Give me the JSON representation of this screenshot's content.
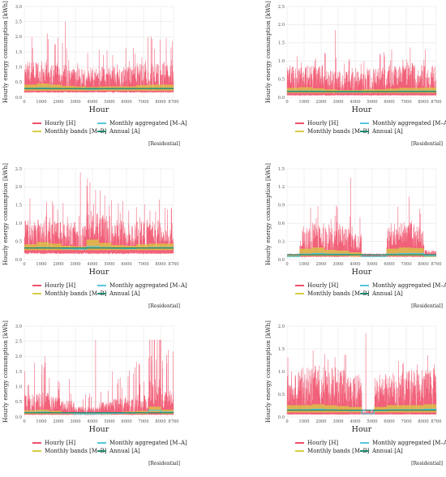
{
  "colors": {
    "hourly": "#f0506a",
    "monthly_bands": "#d8cc44",
    "monthly_aggregated": "#56c8d8",
    "annual": "#1f8a6f",
    "grid": "#e6e6e6",
    "axis_text": "#555555"
  },
  "legend": {
    "hourly": "Hourly [H]",
    "monthly_bands": "Monthly bands [M–B]",
    "monthly_aggregated": "Monthly aggregated [M–A]",
    "annual": "Annual [A]"
  },
  "tag": "[Residential]",
  "chart_data": [
    {
      "type": "line",
      "xlabel": "Hour",
      "ylabel": "Hourly energy consumption [kWh]",
      "xlim": [
        0,
        8760
      ],
      "x_ticks": [
        0,
        1000,
        2000,
        3000,
        4000,
        5000,
        6000,
        7000,
        8000,
        8760
      ],
      "ylim": [
        0,
        3.0
      ],
      "y_ticks": [
        0.0,
        0.5,
        1.0,
        1.5,
        2.0,
        2.5,
        3.0
      ],
      "y_tick_labels": [
        "0.0",
        "0.5",
        "1.0",
        "1.5",
        "2.0",
        "2.5",
        "3.0"
      ],
      "grid": true,
      "series": [
        {
          "name": "Hourly [H]",
          "baseline": 0.18,
          "typical_peak": 1.05,
          "max_peak": 2.5,
          "profile": [
            1.1,
            1.2,
            1.1,
            1.0,
            0.9,
            0.9,
            1.0,
            1.0,
            1.0,
            1.1,
            1.1,
            1.1
          ]
        },
        {
          "name": "Monthly bands [M–B]",
          "low": [
            0.22,
            0.22,
            0.22,
            0.22,
            0.22,
            0.22,
            0.22,
            0.22,
            0.22,
            0.22,
            0.22,
            0.22
          ],
          "high": [
            0.42,
            0.46,
            0.42,
            0.38,
            0.36,
            0.34,
            0.36,
            0.36,
            0.36,
            0.4,
            0.42,
            0.42
          ]
        },
        {
          "name": "Monthly aggregated [M–A]",
          "values": [
            0.3,
            0.31,
            0.3,
            0.29,
            0.28,
            0.27,
            0.28,
            0.28,
            0.28,
            0.29,
            0.3,
            0.3
          ]
        },
        {
          "name": "Annual [A]",
          "value": 0.29
        }
      ]
    },
    {
      "type": "line",
      "xlabel": "Hour",
      "ylabel": "Hourly energy consumption [kWh]",
      "xlim": [
        0,
        8760
      ],
      "x_ticks": [
        0,
        1000,
        2000,
        3000,
        4000,
        5000,
        6000,
        7000,
        8000,
        8760
      ],
      "ylim": [
        0,
        2.5
      ],
      "y_ticks": [
        0.0,
        0.5,
        1.0,
        1.5,
        2.0,
        2.5
      ],
      "y_tick_labels": [
        "0.0",
        "0.5",
        "1.0",
        "1.5",
        "2.0",
        "2.5"
      ],
      "grid": true,
      "series": [
        {
          "name": "Hourly [H]",
          "baseline": 0.06,
          "typical_peak": 0.9,
          "max_peak": 1.85,
          "profile": [
            1.0,
            1.0,
            1.0,
            0.9,
            0.8,
            0.8,
            0.9,
            0.9,
            1.0,
            1.0,
            1.0,
            1.0
          ]
        },
        {
          "name": "Monthly bands [M–B]",
          "low": [
            0.12,
            0.12,
            0.12,
            0.12,
            0.12,
            0.12,
            0.12,
            0.12,
            0.12,
            0.12,
            0.12,
            0.12
          ],
          "high": [
            0.26,
            0.28,
            0.25,
            0.22,
            0.2,
            0.2,
            0.22,
            0.22,
            0.24,
            0.26,
            0.26,
            0.27
          ]
        },
        {
          "name": "Monthly aggregated [M–A]",
          "values": [
            0.17,
            0.17,
            0.17,
            0.16,
            0.15,
            0.15,
            0.16,
            0.16,
            0.16,
            0.17,
            0.17,
            0.17
          ]
        },
        {
          "name": "Annual [A]",
          "value": 0.16
        }
      ]
    },
    {
      "type": "line",
      "xlabel": "Hour",
      "ylabel": "Hourly energy consumption [kWh]",
      "xlim": [
        0,
        8760
      ],
      "x_ticks": [
        0,
        1000,
        2000,
        3000,
        4000,
        5000,
        6000,
        7000,
        8000,
        8760
      ],
      "ylim": [
        0,
        2.5
      ],
      "y_ticks": [
        0.0,
        0.5,
        1.0,
        1.5,
        2.0,
        2.5
      ],
      "y_tick_labels": [
        "0.0",
        "0.5",
        "1.0",
        "1.5",
        "2.0",
        "2.5"
      ],
      "grid": true,
      "series": [
        {
          "name": "Hourly [H]",
          "baseline": 0.18,
          "typical_peak": 1.1,
          "max_peak": 2.4,
          "profile": [
            1.0,
            1.0,
            1.0,
            0.9,
            0.8,
            1.3,
            1.1,
            1.0,
            0.9,
            1.0,
            1.0,
            1.0
          ]
        },
        {
          "name": "Monthly bands [M–B]",
          "low": [
            0.26,
            0.26,
            0.26,
            0.26,
            0.26,
            0.26,
            0.26,
            0.26,
            0.26,
            0.26,
            0.26,
            0.26
          ],
          "high": [
            0.42,
            0.48,
            0.44,
            0.38,
            0.36,
            0.55,
            0.46,
            0.4,
            0.38,
            0.42,
            0.44,
            0.44
          ]
        },
        {
          "name": "Monthly aggregated [M–A]",
          "values": [
            0.32,
            0.33,
            0.32,
            0.3,
            0.29,
            0.36,
            0.33,
            0.31,
            0.3,
            0.32,
            0.33,
            0.33
          ]
        },
        {
          "name": "Annual [A]",
          "value": 0.32
        }
      ]
    },
    {
      "type": "line",
      "xlabel": "Hour",
      "ylabel": "Hourly energy consumption [kWh]",
      "xlim": [
        0,
        8760
      ],
      "x_ticks": [
        0,
        1000,
        2000,
        3000,
        4000,
        5000,
        6000,
        7000,
        8000,
        8760
      ],
      "ylim": [
        0,
        1.5
      ],
      "y_ticks": [
        0.0,
        0.3,
        0.6,
        0.9,
        1.2,
        1.5
      ],
      "y_tick_labels": [
        "0.0",
        "0.3",
        "0.6",
        "0.9",
        "1.2",
        "1.5"
      ],
      "grid": true,
      "series": [
        {
          "name": "Hourly [H]",
          "baseline": 0.05,
          "typical_peak": 0.6,
          "max_peak": 1.35,
          "profile": [
            0.1,
            0.9,
            1.0,
            0.9,
            0.9,
            0.7,
            0.1,
            0.1,
            0.9,
            1.1,
            1.0,
            0.2
          ]
        },
        {
          "name": "Monthly bands [M–B]",
          "low": [
            0.04,
            0.06,
            0.06,
            0.06,
            0.06,
            0.05,
            0.04,
            0.04,
            0.06,
            0.06,
            0.06,
            0.04
          ],
          "high": [
            0.07,
            0.18,
            0.2,
            0.16,
            0.15,
            0.12,
            0.06,
            0.06,
            0.18,
            0.2,
            0.19,
            0.08
          ]
        },
        {
          "name": "Monthly aggregated [M–A]",
          "values": [
            0.05,
            0.09,
            0.1,
            0.09,
            0.09,
            0.08,
            0.05,
            0.05,
            0.09,
            0.1,
            0.1,
            0.06
          ]
        },
        {
          "name": "Annual [A]",
          "value": 0.08
        }
      ]
    },
    {
      "type": "line",
      "xlabel": "Hour",
      "ylabel": "Hourly energy consumption [kWh]",
      "xlim": [
        0,
        8760
      ],
      "x_ticks": [
        0,
        1000,
        2000,
        3000,
        4000,
        5000,
        6000,
        7000,
        8000,
        8760
      ],
      "ylim": [
        0,
        3.0
      ],
      "y_ticks": [
        0.0,
        0.5,
        1.0,
        1.5,
        2.0,
        2.5,
        3.0
      ],
      "y_tick_labels": [
        "0.0",
        "0.5",
        "1.0",
        "1.5",
        "2.0",
        "2.5",
        "3.0"
      ],
      "grid": true,
      "series": [
        {
          "name": "Hourly [H]",
          "baseline": 0.08,
          "typical_peak": 0.75,
          "max_peak": 2.55,
          "profile": [
            1.0,
            1.1,
            0.9,
            0.7,
            0.4,
            0.4,
            0.6,
            0.8,
            0.9,
            1.0,
            1.8,
            1.2
          ]
        },
        {
          "name": "Monthly bands [M–B]",
          "low": [
            0.1,
            0.1,
            0.1,
            0.1,
            0.08,
            0.08,
            0.08,
            0.1,
            0.1,
            0.1,
            0.12,
            0.1
          ],
          "high": [
            0.22,
            0.24,
            0.2,
            0.16,
            0.12,
            0.12,
            0.14,
            0.16,
            0.18,
            0.2,
            0.34,
            0.24
          ]
        },
        {
          "name": "Monthly aggregated [M–A]",
          "values": [
            0.15,
            0.16,
            0.14,
            0.13,
            0.1,
            0.1,
            0.11,
            0.12,
            0.13,
            0.14,
            0.22,
            0.16
          ]
        },
        {
          "name": "Annual [A]",
          "value": 0.14
        }
      ]
    },
    {
      "type": "line",
      "xlabel": "Hour",
      "ylabel": "Hourly energy consumption [kWh]",
      "xlim": [
        0,
        8760
      ],
      "x_ticks": [
        0,
        1000,
        2000,
        3000,
        4000,
        5000,
        6000,
        7000,
        8000,
        8760
      ],
      "ylim": [
        0,
        2.0
      ],
      "y_ticks": [
        0.0,
        0.5,
        1.0,
        1.5,
        2.0
      ],
      "y_tick_labels": [
        "0.0",
        "0.5",
        "1.0",
        "1.5",
        "2.0"
      ],
      "grid": true,
      "series": [
        {
          "name": "Hourly [H]",
          "baseline": 0.06,
          "typical_peak": 1.05,
          "max_peak": 1.85,
          "profile": [
            1.0,
            1.0,
            1.1,
            1.0,
            1.0,
            0.9,
            0.1,
            0.9,
            1.0,
            1.0,
            1.0,
            1.0
          ]
        },
        {
          "name": "Monthly bands [M–B]",
          "low": [
            0.1,
            0.1,
            0.1,
            0.1,
            0.1,
            0.1,
            0.06,
            0.1,
            0.1,
            0.1,
            0.1,
            0.1
          ],
          "high": [
            0.26,
            0.26,
            0.28,
            0.26,
            0.24,
            0.22,
            0.08,
            0.22,
            0.26,
            0.26,
            0.26,
            0.28
          ]
        },
        {
          "name": "Monthly aggregated [M–A]",
          "values": [
            0.16,
            0.16,
            0.17,
            0.16,
            0.15,
            0.14,
            0.07,
            0.14,
            0.16,
            0.16,
            0.16,
            0.17
          ]
        },
        {
          "name": "Annual [A]",
          "value": 0.15
        }
      ]
    }
  ]
}
